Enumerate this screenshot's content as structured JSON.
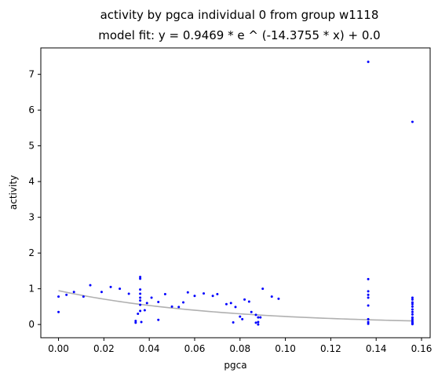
{
  "chart_data": {
    "type": "scatter",
    "title": "activity by pgca individual 0 from group w1118",
    "subtitle": "model fit: y = 0.9469 * e ^ (-14.3755 * x) + 0.0",
    "xlabel": "pgca",
    "ylabel": "activity",
    "xlim": [
      -0.0078,
      0.1638
    ],
    "ylim": [
      -0.37,
      7.74
    ],
    "xticks": [
      {
        "value": 0.0,
        "label": "0.00"
      },
      {
        "value": 0.02,
        "label": "0.02"
      },
      {
        "value": 0.04,
        "label": "0.04"
      },
      {
        "value": 0.06,
        "label": "0.06"
      },
      {
        "value": 0.08,
        "label": "0.08"
      },
      {
        "value": 0.1,
        "label": "0.10"
      },
      {
        "value": 0.12,
        "label": "0.12"
      },
      {
        "value": 0.14,
        "label": "0.14"
      },
      {
        "value": 0.16,
        "label": "0.16"
      }
    ],
    "yticks": [
      {
        "value": 0,
        "label": "0"
      },
      {
        "value": 1,
        "label": "1"
      },
      {
        "value": 2,
        "label": "2"
      },
      {
        "value": 3,
        "label": "3"
      },
      {
        "value": 4,
        "label": "4"
      },
      {
        "value": 5,
        "label": "5"
      },
      {
        "value": 6,
        "label": "6"
      },
      {
        "value": 7,
        "label": "7"
      }
    ],
    "grid": false,
    "series": [
      {
        "kind": "scatter",
        "color": "#0000ff",
        "points": [
          [
            0.0,
            0.35
          ],
          [
            0.0,
            0.78
          ],
          [
            0.0035,
            0.83
          ],
          [
            0.0068,
            0.91
          ],
          [
            0.011,
            0.78
          ],
          [
            0.014,
            1.1
          ],
          [
            0.019,
            0.91
          ],
          [
            0.023,
            1.05
          ],
          [
            0.027,
            1.0
          ],
          [
            0.031,
            0.86
          ],
          [
            0.034,
            0.1
          ],
          [
            0.034,
            0.05
          ],
          [
            0.035,
            0.3
          ],
          [
            0.036,
            1.33
          ],
          [
            0.036,
            1.28
          ],
          [
            0.036,
            0.98
          ],
          [
            0.036,
            0.86
          ],
          [
            0.036,
            0.75
          ],
          [
            0.036,
            0.67
          ],
          [
            0.036,
            0.55
          ],
          [
            0.036,
            0.38
          ],
          [
            0.0365,
            0.07
          ],
          [
            0.038,
            0.4
          ],
          [
            0.039,
            0.6
          ],
          [
            0.041,
            0.75
          ],
          [
            0.044,
            0.13
          ],
          [
            0.044,
            0.63
          ],
          [
            0.047,
            0.85
          ],
          [
            0.05,
            0.5
          ],
          [
            0.053,
            0.49
          ],
          [
            0.055,
            0.62
          ],
          [
            0.057,
            0.9
          ],
          [
            0.06,
            0.8
          ],
          [
            0.064,
            0.87
          ],
          [
            0.068,
            0.8
          ],
          [
            0.07,
            0.85
          ],
          [
            0.074,
            0.57
          ],
          [
            0.076,
            0.6
          ],
          [
            0.077,
            0.06
          ],
          [
            0.078,
            0.49
          ],
          [
            0.08,
            0.22
          ],
          [
            0.081,
            0.15
          ],
          [
            0.082,
            0.7
          ],
          [
            0.084,
            0.64
          ],
          [
            0.085,
            0.35
          ],
          [
            0.087,
            0.27
          ],
          [
            0.087,
            0.05
          ],
          [
            0.088,
            0.0
          ],
          [
            0.088,
            0.07
          ],
          [
            0.088,
            0.2
          ],
          [
            0.089,
            0.2
          ],
          [
            0.09,
            1.0
          ],
          [
            0.094,
            0.78
          ],
          [
            0.097,
            0.72
          ],
          [
            0.1365,
            7.35
          ],
          [
            0.1365,
            1.27
          ],
          [
            0.1365,
            0.93
          ],
          [
            0.1365,
            0.83
          ],
          [
            0.1365,
            0.75
          ],
          [
            0.1365,
            0.53
          ],
          [
            0.1365,
            0.15
          ],
          [
            0.1365,
            0.07
          ],
          [
            0.1365,
            0.02
          ],
          [
            0.156,
            5.67
          ],
          [
            0.156,
            0.75
          ],
          [
            0.156,
            0.7
          ],
          [
            0.156,
            0.62
          ],
          [
            0.156,
            0.57
          ],
          [
            0.156,
            0.5
          ],
          [
            0.156,
            0.42
          ],
          [
            0.156,
            0.35
          ],
          [
            0.156,
            0.28
          ],
          [
            0.156,
            0.2
          ],
          [
            0.156,
            0.15
          ],
          [
            0.156,
            0.1
          ],
          [
            0.156,
            0.06
          ],
          [
            0.156,
            0.03
          ],
          [
            0.156,
            0.01
          ]
        ]
      },
      {
        "kind": "line",
        "color": "#b0b0b0",
        "model": {
          "a": 0.9469,
          "b": -14.3755,
          "c": 0.0
        },
        "x_range": [
          0.0,
          0.156
        ]
      }
    ]
  }
}
